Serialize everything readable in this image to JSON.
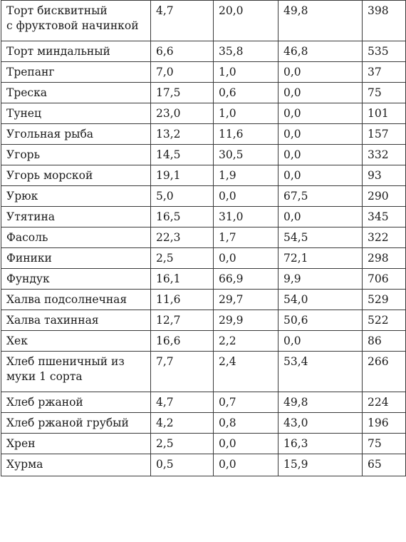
{
  "table": {
    "rows": [
      {
        "name_lines": [
          "Торт бисквитный",
          "с фруктовой начинкой"
        ],
        "protein": "4,7",
        "fat": "20,0",
        "carbs": "49,8",
        "kcal": "398"
      },
      {
        "name_lines": [
          "Торт миндальный"
        ],
        "protein": "6,6",
        "fat": "35,8",
        "carbs": "46,8",
        "kcal": "535"
      },
      {
        "name_lines": [
          "Трепанг"
        ],
        "protein": "7,0",
        "fat": "1,0",
        "carbs": "0,0",
        "kcal": "37"
      },
      {
        "name_lines": [
          "Треска"
        ],
        "protein": "17,5",
        "fat": "0,6",
        "carbs": "0,0",
        "kcal": "75"
      },
      {
        "name_lines": [
          "Тунец"
        ],
        "protein": "23,0",
        "fat": "1,0",
        "carbs": "0,0",
        "kcal": "101"
      },
      {
        "name_lines": [
          "Угольная рыба"
        ],
        "protein": "13,2",
        "fat": "11,6",
        "carbs": "0,0",
        "kcal": "157"
      },
      {
        "name_lines": [
          "Угорь"
        ],
        "protein": "14,5",
        "fat": "30,5",
        "carbs": "0,0",
        "kcal": "332"
      },
      {
        "name_lines": [
          "Угорь морской"
        ],
        "protein": "19,1",
        "fat": "1,9",
        "carbs": "0,0",
        "kcal": "93"
      },
      {
        "name_lines": [
          "Урюк"
        ],
        "protein": "5,0",
        "fat": "0,0",
        "carbs": "67,5",
        "kcal": "290"
      },
      {
        "name_lines": [
          "Утятина"
        ],
        "protein": "16,5",
        "fat": "31,0",
        "carbs": "0,0",
        "kcal": "345"
      },
      {
        "name_lines": [
          "Фасоль"
        ],
        "protein": "22,3",
        "fat": "1,7",
        "carbs": "54,5",
        "kcal": "322"
      },
      {
        "name_lines": [
          "Финики"
        ],
        "protein": "2,5",
        "fat": "0,0",
        "carbs": "72,1",
        "kcal": "298"
      },
      {
        "name_lines": [
          "Фундук"
        ],
        "protein": "16,1",
        "fat": "66,9",
        "carbs": "9,9",
        "kcal": "706"
      },
      {
        "name_lines": [
          "Халва подсолнечная"
        ],
        "protein": "11,6",
        "fat": "29,7",
        "carbs": "54,0",
        "kcal": "529"
      },
      {
        "name_lines": [
          "Халва тахинная"
        ],
        "protein": "12,7",
        "fat": "29,9",
        "carbs": "50,6",
        "kcal": "522"
      },
      {
        "name_lines": [
          "Хек"
        ],
        "protein": "16,6",
        "fat": "2,2",
        "carbs": "0,0",
        "kcal": "86"
      },
      {
        "name_lines": [
          "Хлеб пшеничный из",
          "муки 1 сорта"
        ],
        "protein": "7,7",
        "fat": "2,4",
        "carbs": "53,4",
        "kcal": "266"
      },
      {
        "name_lines": [
          "Хлеб ржаной"
        ],
        "protein": "4,7",
        "fat": "0,7",
        "carbs": "49,8",
        "kcal": "224"
      },
      {
        "name_lines": [
          "Хлеб ржаной грубый"
        ],
        "protein": "4,2",
        "fat": "0,8",
        "carbs": "43,0",
        "kcal": "196"
      },
      {
        "name_lines": [
          "Хрен"
        ],
        "protein": "2,5",
        "fat": "0,0",
        "carbs": "16,3",
        "kcal": "75"
      },
      {
        "name_lines": [
          "Хурма"
        ],
        "protein": "0,5",
        "fat": "0,0",
        "carbs": "15,9",
        "kcal": "65"
      }
    ]
  }
}
